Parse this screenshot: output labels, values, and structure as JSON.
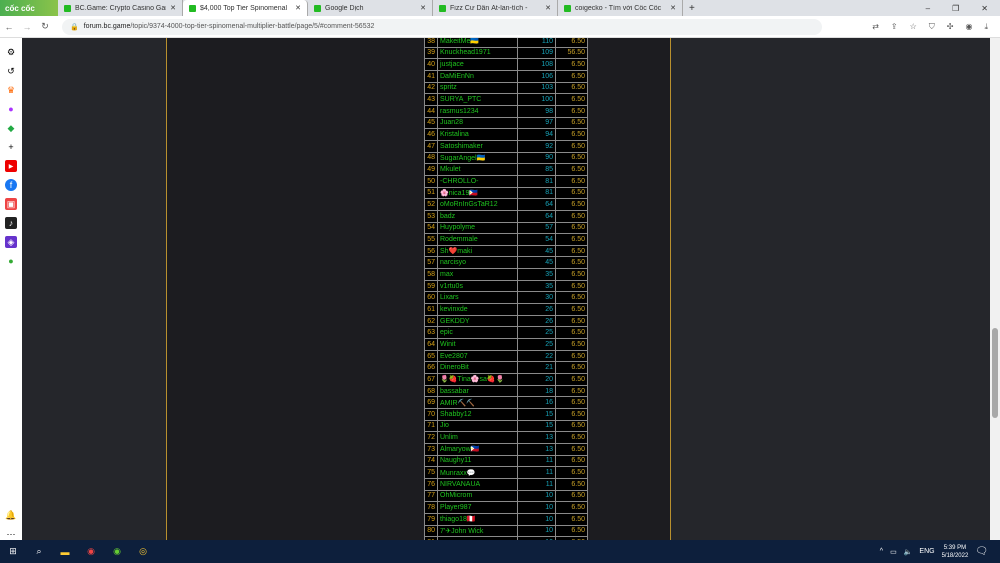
{
  "browser": {
    "logo": "cốc cốc",
    "tabs": [
      {
        "title": "BC.Game: Crypto Casino Gam",
        "active": false
      },
      {
        "title": "$4,000 Top Tier Spinomenal",
        "active": true
      },
      {
        "title": "Google Dịch",
        "active": false
      },
      {
        "title": "Fizz Cư Dân Ất-lan-tích -",
        "active": false
      },
      {
        "title": "coigecko - Tìm với Cốc Cốc",
        "active": false
      }
    ],
    "new_tab": "+",
    "url_domain": "forum.bc.game",
    "url_path": "/topic/9374-4000-top-tier-spinomenal-multiplier-battle/page/5/#comment-56532"
  },
  "table": {
    "rows": [
      [
        "38",
        "MakeitMe🇺🇦",
        "110",
        "6.50"
      ],
      [
        "39",
        "Knuckhead1971",
        "109",
        "56.50"
      ],
      [
        "40",
        "justjace",
        "108",
        "6.50"
      ],
      [
        "41",
        "DaMiEnNn",
        "106",
        "6.50"
      ],
      [
        "42",
        "spritz",
        "103",
        "6.50"
      ],
      [
        "43",
        "SURYA_PTC",
        "100",
        "6.50"
      ],
      [
        "44",
        "rasmus1234",
        "98",
        "6.50"
      ],
      [
        "45",
        "Juan28",
        "97",
        "6.50"
      ],
      [
        "46",
        "Kristalina",
        "94",
        "6.50"
      ],
      [
        "47",
        "Satoshimaker",
        "92",
        "6.50"
      ],
      [
        "48",
        "SugarAngel🇺🇦",
        "90",
        "6.50"
      ],
      [
        "49",
        "Mkulet",
        "85",
        "6.50"
      ],
      [
        "50",
        "-CHROLLO-",
        "81",
        "6.50"
      ],
      [
        "51",
        "🌸nica19🇵🇭",
        "81",
        "6.50"
      ],
      [
        "52",
        "oMoRnInGsTaR12",
        "64",
        "6.50"
      ],
      [
        "53",
        "badz",
        "64",
        "6.50"
      ],
      [
        "54",
        "Huypolyme",
        "57",
        "6.50"
      ],
      [
        "55",
        "Rodemmale",
        "54",
        "6.50"
      ],
      [
        "56",
        "Sh❤️maki",
        "45",
        "6.50"
      ],
      [
        "57",
        "narcisyo",
        "45",
        "6.50"
      ],
      [
        "58",
        "max",
        "35",
        "6.50"
      ],
      [
        "59",
        "v1rtu0s",
        "35",
        "6.50"
      ],
      [
        "60",
        "Lixars",
        "30",
        "6.50"
      ],
      [
        "61",
        "kevinxde",
        "26",
        "6.50"
      ],
      [
        "62",
        "GEKDDY",
        "26",
        "6.50"
      ],
      [
        "63",
        "epic",
        "25",
        "6.50"
      ],
      [
        "64",
        "Winit",
        "25",
        "6.50"
      ],
      [
        "65",
        "Eve2807",
        "22",
        "6.50"
      ],
      [
        "66",
        "DineroBit",
        "21",
        "6.50"
      ],
      [
        "67",
        "🌷🍓Tina🌸sa🍓🌷",
        "20",
        "6.50"
      ],
      [
        "68",
        "bassabar",
        "18",
        "6.50"
      ],
      [
        "69",
        "AMIR⛏️⛏️",
        "16",
        "6.50"
      ],
      [
        "70",
        "Shabby12",
        "15",
        "6.50"
      ],
      [
        "71",
        "Jio",
        "15",
        "6.50"
      ],
      [
        "72",
        "Unlim",
        "13",
        "6.50"
      ],
      [
        "73",
        "Almaryow🇵🇭",
        "13",
        "6.50"
      ],
      [
        "74",
        "Naughy11",
        "11",
        "6.50"
      ],
      [
        "75",
        "Munraxx💬",
        "11",
        "6.50"
      ],
      [
        "76",
        "NIRVANAUA",
        "11",
        "6.50"
      ],
      [
        "77",
        "OhMicrom",
        "10",
        "6.50"
      ],
      [
        "78",
        "Player987",
        "10",
        "6.50"
      ],
      [
        "79",
        "thiago18🇵🇪",
        "10",
        "6.50"
      ],
      [
        "80",
        "7'✈John Wick",
        "10",
        "6.50"
      ],
      [
        "81",
        "",
        "10",
        "6.50"
      ]
    ]
  },
  "taskbar": {
    "lang": "ENG",
    "time": "5:39 PM",
    "date": "5/18/2022"
  },
  "colors": {
    "rank": "#d4a017",
    "name": "#1fc41f",
    "score": "#17a3b8",
    "prize": "#c9a227",
    "post_border": "#b8902e"
  }
}
